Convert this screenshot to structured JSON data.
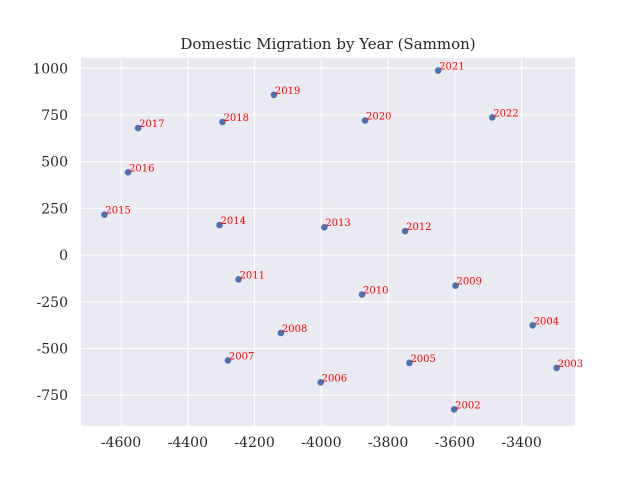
{
  "chart_data": {
    "type": "scatter",
    "title": "Domestic Migration by Year (Sammon)",
    "xlabel": "",
    "ylabel": "",
    "xlim": [
      -4720,
      -3240
    ],
    "ylim": [
      -915,
      1055
    ],
    "xticks": [
      -4600,
      -4400,
      -4200,
      -4000,
      -3800,
      -3600,
      -3400
    ],
    "yticks": [
      1000,
      750,
      500,
      250,
      0,
      -250,
      -500,
      -750
    ],
    "grid": true,
    "points": [
      {
        "label": "2002",
        "x": -3602,
        "y": -826
      },
      {
        "label": "2003",
        "x": -3295,
        "y": -604
      },
      {
        "label": "2004",
        "x": -3367,
        "y": -376
      },
      {
        "label": "2005",
        "x": -3736,
        "y": -577
      },
      {
        "label": "2006",
        "x": -4002,
        "y": -681
      },
      {
        "label": "2007",
        "x": -4280,
        "y": -564
      },
      {
        "label": "2008",
        "x": -4121,
        "y": -417
      },
      {
        "label": "2009",
        "x": -3598,
        "y": -164
      },
      {
        "label": "2010",
        "x": -3878,
        "y": -211
      },
      {
        "label": "2011",
        "x": -4248,
        "y": -130
      },
      {
        "label": "2012",
        "x": -3749,
        "y": 128
      },
      {
        "label": "2013",
        "x": -3991,
        "y": 149
      },
      {
        "label": "2014",
        "x": -4305,
        "y": 161
      },
      {
        "label": "2015",
        "x": -4650,
        "y": 216
      },
      {
        "label": "2016",
        "x": -4579,
        "y": 443
      },
      {
        "label": "2017",
        "x": -4549,
        "y": 680
      },
      {
        "label": "2018",
        "x": -4296,
        "y": 713
      },
      {
        "label": "2019",
        "x": -4142,
        "y": 858
      },
      {
        "label": "2020",
        "x": -3869,
        "y": 720
      },
      {
        "label": "2021",
        "x": -3650,
        "y": 988
      },
      {
        "label": "2022",
        "x": -3488,
        "y": 737
      }
    ]
  }
}
